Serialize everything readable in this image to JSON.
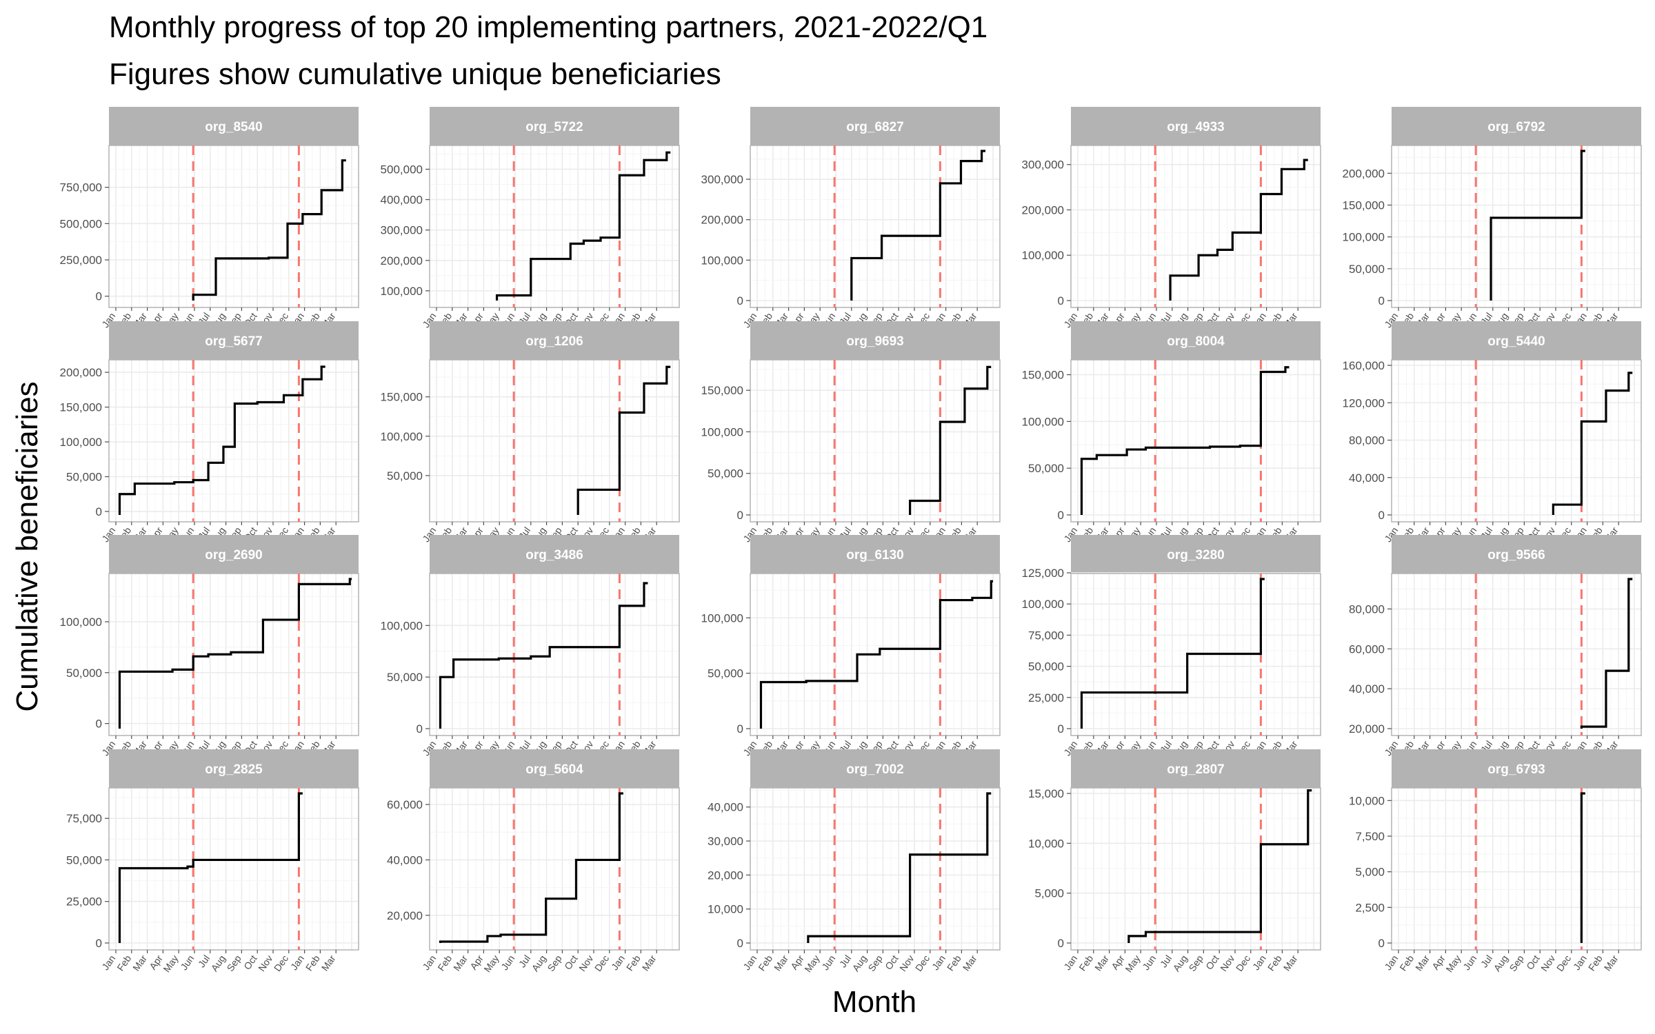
{
  "chart_data": {
    "type": "line",
    "step": true,
    "title": "Monthly progress of top 20 implementing partners, 2021-2022/Q1",
    "subtitle": "Figures show cumulative unique beneficiaries",
    "xlabel": "Month",
    "ylabel": "Cumulative beneficiaries",
    "x_ticks": [
      "Jan",
      "Feb",
      "Mar",
      "Apr",
      "May",
      "Jun",
      "Jul",
      "Aug",
      "Sep",
      "Oct",
      "Nov",
      "Dec",
      "Jan",
      "Feb",
      "Mar"
    ],
    "x_range": [
      2021.0,
      2022.25
    ],
    "reference_lines": [
      2021.41,
      2021.97
    ],
    "reference_line_color": "#f8766d",
    "strip_color": "#b3b3b3",
    "grid": true,
    "panels": [
      {
        "name": "org_8540",
        "ylim": [
          -30000,
          1000000
        ],
        "yticks": [
          0,
          250000,
          500000,
          750000
        ],
        "ytick_labels": [
          "0",
          "250,000",
          "500,000",
          "750,000"
        ],
        "x": [
          2021.41,
          2021.53,
          2021.81,
          2021.91,
          2021.99,
          2022.09,
          2022.2
        ],
        "y": [
          10000,
          260000,
          265000,
          500000,
          565000,
          730000,
          935000
        ]
      },
      {
        "name": "org_5722",
        "ylim": [
          68000,
          560000
        ],
        "yticks": [
          100000,
          200000,
          300000,
          400000,
          500000
        ],
        "ytick_labels": [
          "100,000",
          "200,000",
          "300,000",
          "400,000",
          "500,000"
        ],
        "x": [
          2021.32,
          2021.5,
          2021.71,
          2021.78,
          2021.87,
          2021.97,
          2022.1,
          2022.22
        ],
        "y": [
          85000,
          205000,
          255000,
          265000,
          275000,
          480000,
          530000,
          555000
        ]
      },
      {
        "name": "org_6827",
        "ylim": [
          0,
          370000
        ],
        "yticks": [
          0,
          100000,
          200000,
          300000
        ],
        "ytick_labels": [
          "0",
          "100,000",
          "200,000",
          "300,000"
        ],
        "x": [
          2021.5,
          2021.66,
          2021.97,
          2022.08,
          2022.19
        ],
        "y": [
          105000,
          160000,
          290000,
          345000,
          370000
        ]
      },
      {
        "name": "org_4933",
        "ylim": [
          0,
          330000
        ],
        "yticks": [
          0,
          100000,
          200000,
          300000
        ],
        "ytick_labels": [
          "0",
          "100,000",
          "200,000",
          "300,000"
        ],
        "x": [
          2021.49,
          2021.64,
          2021.74,
          2021.82,
          2021.97,
          2022.08,
          2022.2
        ],
        "y": [
          55000,
          100000,
          112000,
          150000,
          235000,
          290000,
          310000
        ]
      },
      {
        "name": "org_6792",
        "ylim": [
          0,
          235000
        ],
        "yticks": [
          0,
          50000,
          100000,
          150000,
          200000
        ],
        "ytick_labels": [
          "0",
          "50,000",
          "100,000",
          "150,000",
          "200,000"
        ],
        "x": [
          2021.49,
          2021.97
        ],
        "y": [
          130000,
          235000
        ]
      },
      {
        "name": "org_5677",
        "ylim": [
          -5000,
          210000
        ],
        "yticks": [
          0,
          50000,
          100000,
          150000,
          200000
        ],
        "ytick_labels": [
          "0",
          "50,000",
          "100,000",
          "150,000",
          "200,000"
        ],
        "x": [
          2021.02,
          2021.1,
          2021.31,
          2021.41,
          2021.49,
          2021.57,
          2021.63,
          2021.75,
          2021.89,
          2021.99,
          2022.09
        ],
        "y": [
          25000,
          40000,
          42000,
          45000,
          70000,
          93000,
          155000,
          157000,
          167000,
          190000,
          208000
        ]
      },
      {
        "name": "org_1206",
        "ylim": [
          0,
          190000
        ],
        "yticks": [
          50000,
          100000,
          150000
        ],
        "ytick_labels": [
          "50,000",
          "100,000",
          "150,000"
        ],
        "x": [
          2021.75,
          2021.97,
          2022.1,
          2022.22
        ],
        "y": [
          32000,
          130000,
          167000,
          188000
        ]
      },
      {
        "name": "org_9693",
        "ylim": [
          0,
          180000
        ],
        "yticks": [
          0,
          50000,
          100000,
          150000
        ],
        "ytick_labels": [
          "0",
          "50,000",
          "100,000",
          "150,000"
        ],
        "x": [
          2021.81,
          2021.97,
          2022.1,
          2022.22
        ],
        "y": [
          17000,
          112000,
          152000,
          178000
        ]
      },
      {
        "name": "org_8004",
        "ylim": [
          0,
          160000
        ],
        "yticks": [
          0,
          50000,
          100000,
          150000
        ],
        "ytick_labels": [
          "0",
          "50,000",
          "100,000",
          "150,000"
        ],
        "x": [
          2021.02,
          2021.1,
          2021.26,
          2021.36,
          2021.7,
          2021.86,
          2021.97,
          2022.1
        ],
        "y": [
          60000,
          64000,
          70000,
          72000,
          73000,
          74000,
          153000,
          158000
        ]
      },
      {
        "name": "org_5440",
        "ylim": [
          0,
          160000
        ],
        "yticks": [
          0,
          40000,
          80000,
          120000,
          160000
        ],
        "ytick_labels": [
          "0",
          "40,000",
          "80,000",
          "120,000",
          "160,000"
        ],
        "x": [
          2021.82,
          2021.97,
          2022.1,
          2022.22
        ],
        "y": [
          11000,
          100000,
          133000,
          152000
        ]
      },
      {
        "name": "org_2690",
        "ylim": [
          -5000,
          142000
        ],
        "yticks": [
          0,
          50000,
          100000
        ],
        "ytick_labels": [
          "0",
          "50,000",
          "100,000"
        ],
        "x": [
          2021.02,
          2021.3,
          2021.41,
          2021.49,
          2021.61,
          2021.78,
          2021.97,
          2022.24
        ],
        "y": [
          51000,
          53000,
          66000,
          68000,
          70000,
          102000,
          137000,
          142000
        ]
      },
      {
        "name": "org_3486",
        "ylim": [
          0,
          145000
        ],
        "yticks": [
          0,
          50000,
          100000
        ],
        "ytick_labels": [
          "0",
          "50,000",
          "100,000"
        ],
        "x": [
          2021.02,
          2021.09,
          2021.33,
          2021.5,
          2021.6,
          2021.97,
          2022.1
        ],
        "y": [
          50000,
          67000,
          68000,
          70000,
          79000,
          119000,
          141000
        ]
      },
      {
        "name": "org_6130",
        "ylim": [
          0,
          135000
        ],
        "yticks": [
          0,
          50000,
          100000
        ],
        "ytick_labels": [
          "0",
          "50,000",
          "100,000"
        ],
        "x": [
          2021.02,
          2021.26,
          2021.53,
          2021.65,
          2021.97,
          2022.14,
          2022.24
        ],
        "y": [
          42000,
          43000,
          67000,
          72000,
          116000,
          118000,
          133000
        ]
      },
      {
        "name": "org_3280",
        "ylim": [
          0,
          120000
        ],
        "yticks": [
          0,
          25000,
          50000,
          75000,
          100000,
          125000
        ],
        "ytick_labels": [
          "0",
          "25,000",
          "50,000",
          "75,000",
          "100,000",
          "125,000"
        ],
        "x": [
          2021.02,
          2021.58,
          2021.97
        ],
        "y": [
          29000,
          60000,
          120000
        ]
      },
      {
        "name": "org_9566",
        "ylim": [
          20000,
          95000
        ],
        "yticks": [
          20000,
          40000,
          60000,
          80000
        ],
        "ytick_labels": [
          "20,000",
          "40,000",
          "60,000",
          "80,000"
        ],
        "x": [
          2021.97,
          2022.1,
          2022.22
        ],
        "y": [
          21000,
          49000,
          95000
        ]
      },
      {
        "name": "org_2825",
        "ylim": [
          0,
          90000
        ],
        "yticks": [
          0,
          25000,
          50000,
          75000
        ],
        "ytick_labels": [
          "0",
          "25,000",
          "50,000",
          "75,000"
        ],
        "x": [
          2021.02,
          2021.38,
          2021.41,
          2021.97
        ],
        "y": [
          45000,
          46000,
          50000,
          90000
        ]
      },
      {
        "name": "org_5604",
        "ylim": [
          10000,
          64000
        ],
        "yticks": [
          20000,
          40000,
          60000
        ],
        "ytick_labels": [
          "20,000",
          "40,000",
          "60,000"
        ],
        "x": [
          2021.02,
          2021.27,
          2021.34,
          2021.58,
          2021.74,
          2021.97
        ],
        "y": [
          10500,
          12500,
          13000,
          26000,
          40000,
          64000
        ]
      },
      {
        "name": "org_7002",
        "ylim": [
          0,
          44000
        ],
        "yticks": [
          0,
          10000,
          20000,
          30000,
          40000
        ],
        "ytick_labels": [
          "0",
          "10,000",
          "20,000",
          "30,000",
          "40,000"
        ],
        "x": [
          2021.27,
          2021.81,
          2022.22
        ],
        "y": [
          2000,
          26000,
          44000
        ]
      },
      {
        "name": "org_2807",
        "ylim": [
          0,
          15000
        ],
        "yticks": [
          0,
          5000,
          10000,
          15000
        ],
        "ytick_labels": [
          "0",
          "5,000",
          "10,000",
          "15,000"
        ],
        "x": [
          2021.27,
          2021.36,
          2021.97,
          2022.22
        ],
        "y": [
          700,
          1100,
          9900,
          15300
        ]
      },
      {
        "name": "org_6793",
        "ylim": [
          0,
          10500
        ],
        "yticks": [
          0,
          2500,
          5000,
          7500,
          10000
        ],
        "ytick_labels": [
          "0",
          "2,500",
          "5,000",
          "7,500",
          "10,000"
        ],
        "x": [
          2021.97
        ],
        "y": [
          10500
        ]
      }
    ]
  }
}
